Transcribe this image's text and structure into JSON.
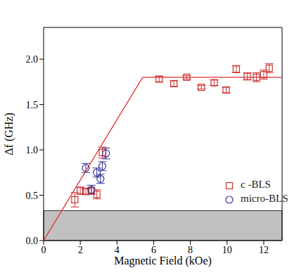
{
  "chart_data": {
    "type": "scatter",
    "x_label": "Magnetic Field (kOe)",
    "y_label": "Δf (GHz)",
    "xlim": [
      0,
      13
    ],
    "ylim": [
      0,
      2.35
    ],
    "xticks": [
      0,
      2,
      4,
      6,
      8,
      10,
      12
    ],
    "yticks": [
      {
        "value": 0,
        "label": "0.0"
      },
      {
        "value": 0.5,
        "label": "0.5"
      },
      {
        "value": 1.0,
        "label": "1.0"
      },
      {
        "value": 1.5,
        "label": "1.5"
      },
      {
        "value": 2.0,
        "label": "2.0"
      }
    ],
    "grid": false,
    "legend": "lower right",
    "shaded_band": {
      "ylim": [
        0,
        0.33
      ],
      "color": "#c0c0c0"
    },
    "series": [
      {
        "name": "c -BLS",
        "type": "scatter",
        "color": "#cc3333",
        "marker": "square",
        "x": [
          1.7,
          2.0,
          2.3,
          2.6,
          2.9,
          3.2,
          6.3,
          7.1,
          7.8,
          8.6,
          9.3,
          9.95,
          10.5,
          11.1,
          11.6,
          12.0,
          12.3
        ],
        "values": [
          0.45,
          0.55,
          0.54,
          0.55,
          0.51,
          0.97,
          1.78,
          1.73,
          1.8,
          1.69,
          1.74,
          1.66,
          1.89,
          1.81,
          1.8,
          1.83,
          1.9
        ],
        "errors": [
          0.08,
          0.04,
          0.03,
          0.03,
          0.05,
          0.06,
          0.03,
          0.03,
          0.02,
          0.02,
          0.03,
          0.03,
          0.04,
          0.04,
          0.05,
          0.05,
          0.05
        ]
      },
      {
        "name": "micro-BLS",
        "type": "scatter",
        "color": "#333399",
        "marker": "circle",
        "x": [
          2.3,
          2.6,
          2.9,
          3.1,
          3.2,
          3.4
        ],
        "values": [
          0.8,
          0.56,
          0.75,
          0.68,
          0.82,
          0.96
        ],
        "errors": [
          0.05,
          0.05,
          0.05,
          0.05,
          0.05,
          0.06
        ]
      },
      {
        "type": "line",
        "color": "#e03030",
        "line_style": "solid",
        "x": [
          0,
          5.4,
          13
        ],
        "values": [
          0,
          1.8,
          1.8
        ]
      }
    ]
  }
}
